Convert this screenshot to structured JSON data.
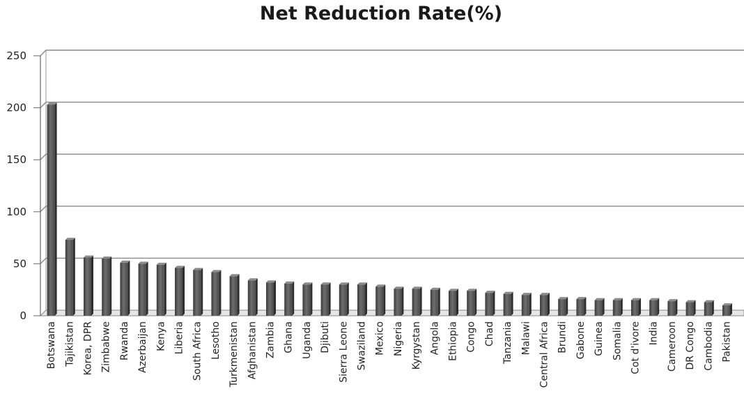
{
  "chart_data": {
    "type": "bar",
    "title": "Net Reduction Rate(%)",
    "xlabel": "",
    "ylabel": "",
    "ylim": [
      0,
      250
    ],
    "yticks": [
      0,
      50,
      100,
      150,
      200,
      250
    ],
    "grid": true,
    "legend": "none",
    "bar_color": "#5a5a5a",
    "categories": [
      "Botswana",
      "Tajikistan",
      "Korea, DPR",
      "Zimbabwe",
      "Rwanda",
      "Azerbaijan",
      "Kenya",
      "Liberia",
      "South Africa",
      "Lesotho",
      "Turkmenistan",
      "Afghanistan",
      "Zambia",
      "Ghana",
      "Uganda",
      "Djibuti",
      "Sierra Leone",
      "Swaziland",
      "Mexico",
      "Nigeria",
      "Kyrgystan",
      "Angola",
      "Ethiopia",
      "Congo",
      "Chad",
      "Tanzania",
      "Malawi",
      "Central Africa",
      "Brundi",
      "Gabone",
      "Guinea",
      "Somalia",
      "Cot d'ivore",
      "India",
      "Cameroon",
      "DR Congo",
      "Cambodia",
      "Pakistan"
    ],
    "values": [
      203,
      73,
      56,
      55,
      51,
      50,
      49,
      46,
      44,
      42,
      38,
      34,
      32,
      31,
      30,
      30,
      30,
      30,
      28,
      26,
      26,
      25,
      24,
      24,
      22,
      21,
      20,
      20,
      16,
      16,
      15,
      15,
      15,
      15,
      14,
      13,
      13,
      10
    ]
  }
}
